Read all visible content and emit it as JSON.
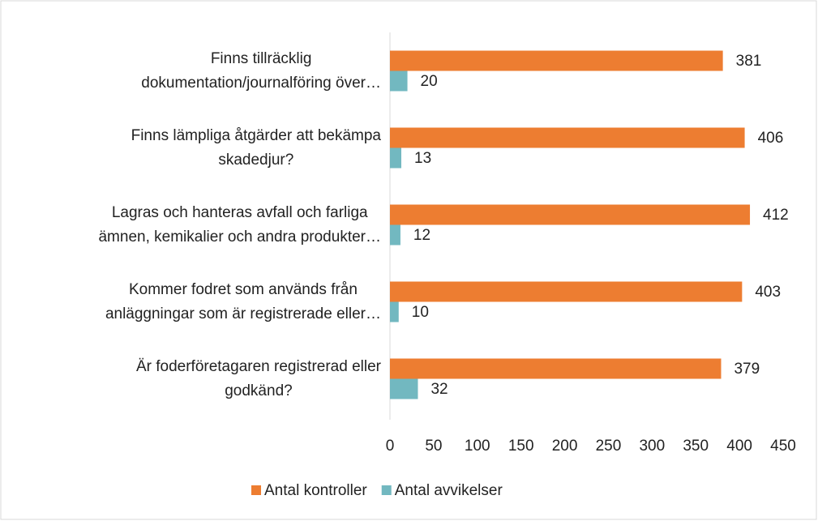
{
  "chart_data": {
    "type": "bar",
    "orientation": "horizontal",
    "categories": [
      "Finns tillräcklig\ndokumentation/journalföring över…",
      "Finns lämpliga åtgärder att bekämpa\nskadedjur?",
      "Lagras och hanteras avfall och farliga\nämnen, kemikalier och andra produkter…",
      "Kommer fodret som används från\nanläggningar som är registrerade eller…",
      "Är foderföretagaren registrerad eller\ngodkänd?"
    ],
    "series": [
      {
        "name": "Antal kontroller",
        "color": "#ed7d31",
        "values": [
          381,
          406,
          412,
          403,
          379
        ]
      },
      {
        "name": "Antal avvikelser",
        "color": "#72b8c0",
        "values": [
          20,
          13,
          12,
          10,
          32
        ]
      }
    ],
    "xlim": [
      0,
      450
    ],
    "xticks": [
      0,
      50,
      100,
      150,
      200,
      250,
      300,
      350,
      400,
      450
    ],
    "legend": "bottom",
    "grid": false
  }
}
